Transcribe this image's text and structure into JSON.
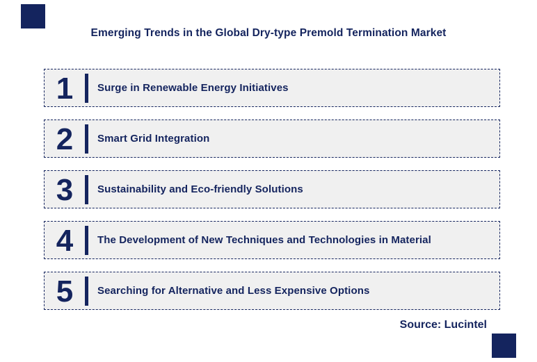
{
  "title": "Emerging Trends in the Global Dry-type Premold Termination Market",
  "source_label": "Source: Lucintel",
  "colors": {
    "navy": "#14245E",
    "row_bg": "#F0F0F0"
  },
  "trends": [
    {
      "number": "1",
      "label": "Surge in Renewable Energy Initiatives"
    },
    {
      "number": "2",
      "label": "Smart Grid Integration"
    },
    {
      "number": "3",
      "label": "Sustainability and Eco-friendly Solutions"
    },
    {
      "number": "4",
      "label": "The Development of New Techniques and Technologies in Material"
    },
    {
      "number": "5",
      "label": "Searching for Alternative and Less Expensive Options"
    }
  ]
}
